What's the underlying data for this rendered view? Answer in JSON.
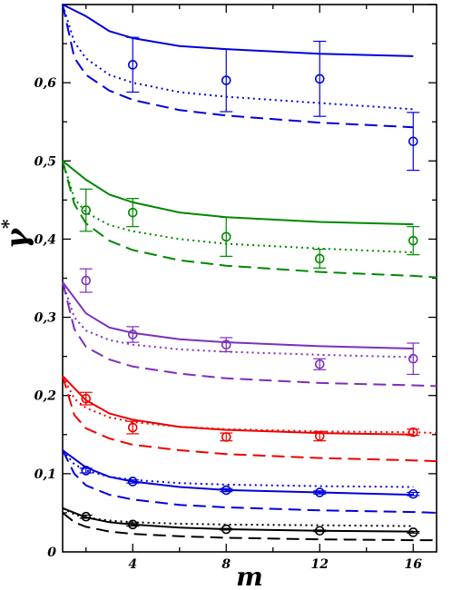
{
  "chart_data": {
    "type": "line",
    "title": "",
    "xlabel": "m",
    "ylabel": "γ",
    "ylabel_superscript": "*",
    "xlim": [
      1,
      17
    ],
    "ylim": [
      0,
      0.7
    ],
    "x_ticks": [
      4,
      8,
      12,
      16
    ],
    "x_tick_labels": [
      "4",
      "8",
      "12",
      "16"
    ],
    "y_ticks": [
      0,
      0.1,
      0.2,
      0.3,
      0.4,
      0.5,
      0.6
    ],
    "y_tick_labels": [
      "0",
      "0,1",
      "0,2",
      "0,3",
      "0,4",
      "0,5",
      "0,6"
    ],
    "grid": false,
    "groups": [
      {
        "color": "#0000dd",
        "solid": {
          "x": [
            1,
            2,
            3,
            4,
            6,
            8,
            12,
            16
          ],
          "y": [
            0.7,
            0.685,
            0.666,
            0.657,
            0.647,
            0.643,
            0.637,
            0.634
          ]
        },
        "dotted": {
          "x": [
            1,
            1.5,
            2,
            3,
            4,
            6,
            8,
            12,
            16
          ],
          "y": [
            0.7,
            0.652,
            0.631,
            0.61,
            0.6,
            0.588,
            0.582,
            0.574,
            0.566
          ]
        },
        "dashed": {
          "x": [
            1,
            1.5,
            2,
            3,
            4,
            6,
            8,
            12,
            16
          ],
          "y": [
            0.7,
            0.632,
            0.61,
            0.59,
            0.578,
            0.565,
            0.558,
            0.549,
            0.543
          ]
        },
        "points": [
          {
            "x": 4,
            "y": 0.623,
            "err": 0.035
          },
          {
            "x": 8,
            "y": 0.603,
            "err": 0.04
          },
          {
            "x": 12,
            "y": 0.605,
            "err": 0.048
          },
          {
            "x": 16,
            "y": 0.525,
            "err": 0.037
          }
        ]
      },
      {
        "color": "#008800",
        "solid": {
          "x": [
            1,
            2,
            3,
            4,
            6,
            8,
            12,
            16
          ],
          "y": [
            0.5,
            0.476,
            0.457,
            0.447,
            0.434,
            0.428,
            0.422,
            0.419
          ]
        },
        "dotted": {
          "x": [
            1,
            1.5,
            2,
            3,
            4,
            6,
            8,
            12,
            16
          ],
          "y": [
            0.5,
            0.452,
            0.434,
            0.418,
            0.41,
            0.4,
            0.394,
            0.388,
            0.383
          ]
        },
        "dashed": {
          "x": [
            1,
            1.5,
            2,
            3,
            4,
            6,
            8,
            12,
            16,
            17
          ],
          "y": [
            0.5,
            0.445,
            0.42,
            0.398,
            0.386,
            0.373,
            0.366,
            0.358,
            0.353,
            0.351
          ]
        },
        "points": [
          {
            "x": 2,
            "y": 0.437,
            "err": 0.027
          },
          {
            "x": 4,
            "y": 0.434,
            "err": 0.018
          },
          {
            "x": 8,
            "y": 0.403,
            "err": 0.025
          },
          {
            "x": 12,
            "y": 0.375,
            "err": 0.012
          },
          {
            "x": 16,
            "y": 0.398,
            "err": 0.018
          }
        ]
      },
      {
        "color": "#7b2fbe",
        "solid": {
          "x": [
            1,
            2,
            3,
            4,
            6,
            8,
            12,
            16
          ],
          "y": [
            0.345,
            0.305,
            0.287,
            0.28,
            0.272,
            0.268,
            0.263,
            0.26
          ]
        },
        "dotted": {
          "x": [
            1,
            1.5,
            2,
            3,
            4,
            6,
            8,
            12,
            16
          ],
          "y": [
            0.345,
            0.3,
            0.283,
            0.271,
            0.265,
            0.259,
            0.256,
            0.252,
            0.249
          ]
        },
        "dashed": {
          "x": [
            1,
            1.5,
            2,
            3,
            4,
            6,
            8,
            12,
            16,
            17
          ],
          "y": [
            0.345,
            0.285,
            0.262,
            0.246,
            0.237,
            0.228,
            0.222,
            0.216,
            0.213,
            0.212
          ]
        },
        "points": [
          {
            "x": 2,
            "y": 0.347,
            "err": 0.015
          },
          {
            "x": 4,
            "y": 0.278,
            "err": 0.01
          },
          {
            "x": 8,
            "y": 0.265,
            "err": 0.009
          },
          {
            "x": 12,
            "y": 0.24,
            "err": 0.007
          },
          {
            "x": 16,
            "y": 0.247,
            "err": 0.02
          }
        ]
      },
      {
        "color": "#ee0000",
        "solid": {
          "x": [
            1,
            2,
            3,
            4,
            6,
            8,
            12,
            16
          ],
          "y": [
            0.225,
            0.194,
            0.177,
            0.169,
            0.16,
            0.156,
            0.152,
            0.15
          ]
        },
        "dotted": {
          "x": [
            1,
            1.5,
            2,
            3,
            4,
            6,
            8,
            12,
            16,
            17
          ],
          "y": [
            0.225,
            0.196,
            0.184,
            0.172,
            0.166,
            0.16,
            0.157,
            0.154,
            0.153,
            0.152
          ]
        },
        "dashed": {
          "x": [
            1,
            1.5,
            2,
            3,
            4,
            6,
            8,
            12,
            16,
            17
          ],
          "y": [
            0.225,
            0.175,
            0.158,
            0.145,
            0.137,
            0.13,
            0.125,
            0.12,
            0.117,
            0.116
          ]
        },
        "points": [
          {
            "x": 2,
            "y": 0.196,
            "err": 0.008
          },
          {
            "x": 4,
            "y": 0.159,
            "err": 0.008
          },
          {
            "x": 8,
            "y": 0.147,
            "err": 0.005
          },
          {
            "x": 12,
            "y": 0.148,
            "err": 0.006
          },
          {
            "x": 16,
            "y": 0.153,
            "err": 0.004
          }
        ]
      },
      {
        "color": "#0000dd",
        "solid": {
          "x": [
            1,
            2,
            3,
            4,
            6,
            8,
            12,
            16
          ],
          "y": [
            0.13,
            0.108,
            0.096,
            0.09,
            0.083,
            0.079,
            0.076,
            0.073
          ]
        },
        "dotted": {
          "x": [
            1,
            1.5,
            2,
            3,
            4,
            6,
            8,
            12,
            16
          ],
          "y": [
            0.13,
            0.112,
            0.104,
            0.096,
            0.092,
            0.088,
            0.086,
            0.084,
            0.083
          ]
        },
        "dashed": {
          "x": [
            1,
            1.5,
            2,
            3,
            4,
            6,
            8,
            12,
            16,
            17
          ],
          "y": [
            0.13,
            0.1,
            0.085,
            0.073,
            0.067,
            0.06,
            0.057,
            0.053,
            0.051,
            0.05
          ]
        },
        "points": [
          {
            "x": 2,
            "y": 0.104,
            "err": 0.003
          },
          {
            "x": 4,
            "y": 0.09,
            "err": 0.002
          },
          {
            "x": 8,
            "y": 0.079,
            "err": 0.002
          },
          {
            "x": 12,
            "y": 0.076,
            "err": 0.002
          },
          {
            "x": 16,
            "y": 0.074,
            "err": 0.002
          }
        ]
      },
      {
        "color": "#000000",
        "solid": {
          "x": [
            1,
            2,
            3,
            4,
            6,
            8,
            12,
            16
          ],
          "y": [
            0.056,
            0.044,
            0.038,
            0.035,
            0.031,
            0.029,
            0.027,
            0.026
          ]
        },
        "dotted": {
          "x": [
            1,
            1.5,
            2,
            3,
            4,
            6,
            8,
            12,
            16
          ],
          "y": [
            0.056,
            0.048,
            0.044,
            0.04,
            0.038,
            0.036,
            0.035,
            0.034,
            0.033
          ]
        },
        "dashed": {
          "x": [
            1,
            1.5,
            2,
            3,
            4,
            6,
            8,
            12,
            16,
            17
          ],
          "y": [
            0.05,
            0.038,
            0.032,
            0.026,
            0.023,
            0.02,
            0.018,
            0.016,
            0.015,
            0.015
          ]
        },
        "points": [
          {
            "x": 2,
            "y": 0.045,
            "err": 0.002
          },
          {
            "x": 4,
            "y": 0.035,
            "err": 0.002
          },
          {
            "x": 8,
            "y": 0.029,
            "err": 0.001
          },
          {
            "x": 12,
            "y": 0.027,
            "err": 0.001
          },
          {
            "x": 16,
            "y": 0.025,
            "err": 0.001
          }
        ]
      }
    ]
  }
}
